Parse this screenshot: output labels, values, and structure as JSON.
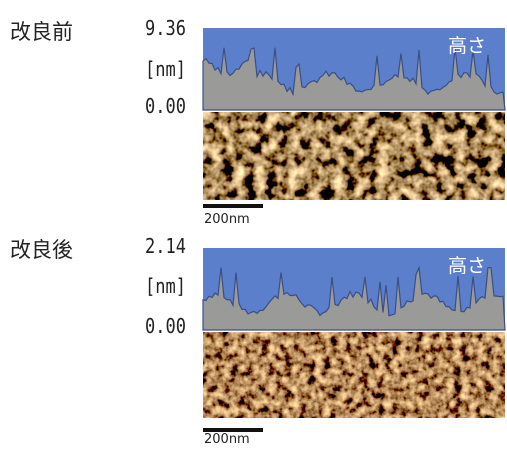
{
  "panels": [
    {
      "label": "改良前",
      "max": "9.36",
      "unit": "[nm]",
      "min": "0.00",
      "profile_label": "高さ",
      "scale": "200nm"
    },
    {
      "label": "改良後",
      "max": "2.14",
      "unit": "[nm]",
      "min": "0.00",
      "profile_label": "高さ",
      "scale": "200nm"
    }
  ]
}
